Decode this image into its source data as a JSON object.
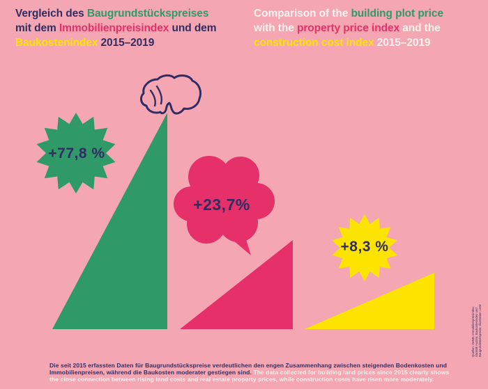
{
  "colors": {
    "background": "#F4A7B2",
    "green": "#2F9A68",
    "magenta": "#E63069",
    "yellow": "#FCE400",
    "navy": "#312D63",
    "white": "#FBF1EF"
  },
  "title_de": {
    "l1a": "Vergleich des ",
    "l1b": "Baugrundstückspreises",
    "l2a": "mit dem ",
    "l2b": "Immobilienpreisindex",
    "l2c": " und dem",
    "l3a": "Baukostenindex",
    "l3b": " 2015–2019"
  },
  "title_en": {
    "l1a": "Comparison of the ",
    "l1b": "building plot price",
    "l2a": "with the ",
    "l2b": "property price index",
    "l2c": " and the",
    "l3a": "construction cost index",
    "l3b": " 2015–2019"
  },
  "badges": {
    "green_label": "+77,8 %",
    "magenta_label": "+23,7%",
    "yellow_label": "+8,3 %"
  },
  "footer": {
    "de": "Die seit 2015 erfassten Daten für Baugrundstückspreise verdeutlichen den engen Zusammenhang zwischen steigenden Bodenkosten und Immobilienpreisen, während die Baukosten moderater gestiegen sind. ",
    "en": "The data collected for building land prices since 2015 clearly shows the close connection between rising land costs and real estate property prices, while construction costs have risen more moderately."
  },
  "source_note": "Quellen: OeNB, Immobilienpreisindex; Statistik Austria, Baukostenindex und Baugrundstückspreise; Illustration: LWZ",
  "chart_data": {
    "type": "bar",
    "title": "Vergleich des Baugrundstückspreises mit dem Immobilienpreisindex und dem Baukostenindex 2015–2019",
    "title_en": "Comparison of the building plot price with the property price index and the construction cost index 2015–2019",
    "period": "2015–2019",
    "unit": "%",
    "categories": [
      "Baugrundstückspreis / building plot price",
      "Immobilienpreisindex / property price index",
      "Baukostenindex / construction cost index"
    ],
    "values": [
      77.8,
      23.7,
      8.3
    ],
    "value_labels": [
      "+77,8 %",
      "+23,7%",
      "+8,3 %"
    ],
    "bar_colors": [
      "#2F9A68",
      "#E63069",
      "#FCE400"
    ],
    "legend_position": "none",
    "grid": false,
    "axes_visible": false
  }
}
